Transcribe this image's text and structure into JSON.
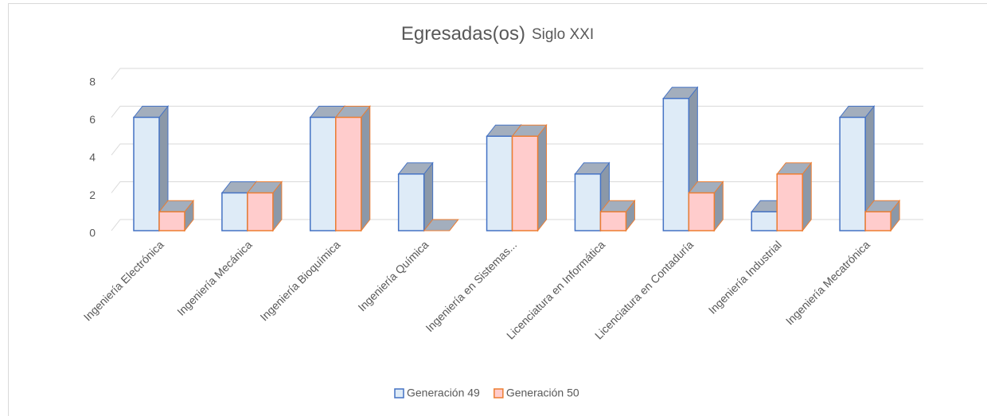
{
  "chart_data": {
    "type": "bar3d",
    "title": "Egresadas(os)",
    "subtitle": "Siglo XXI",
    "categories": [
      "Ingeniería Electrónica",
      "Ingeniería Mecánica",
      "Ingeniería Bioquímica",
      "Ingeniería Química",
      "Ingeniería en Sistemas...",
      "Licenciatura en Informática",
      "Licenciatura en Contaduría",
      "Ingeniería Industrial",
      "Ingeniería Mecatrónica"
    ],
    "series": [
      {
        "name": "Generación 49",
        "color": "#deebf7",
        "edgecolor": "#4472c4",
        "values": [
          6,
          2,
          6,
          3,
          5,
          3,
          7,
          1,
          6
        ]
      },
      {
        "name": "Generación 50",
        "color": "#ffcccc",
        "edgecolor": "#ed7d31",
        "values": [
          1,
          2,
          6,
          0,
          5,
          1,
          2,
          3,
          1
        ]
      }
    ],
    "ylim": [
      0,
      8
    ],
    "yticks": [
      0,
      2,
      4,
      6,
      8
    ],
    "grid": true,
    "legend": "bottom"
  }
}
